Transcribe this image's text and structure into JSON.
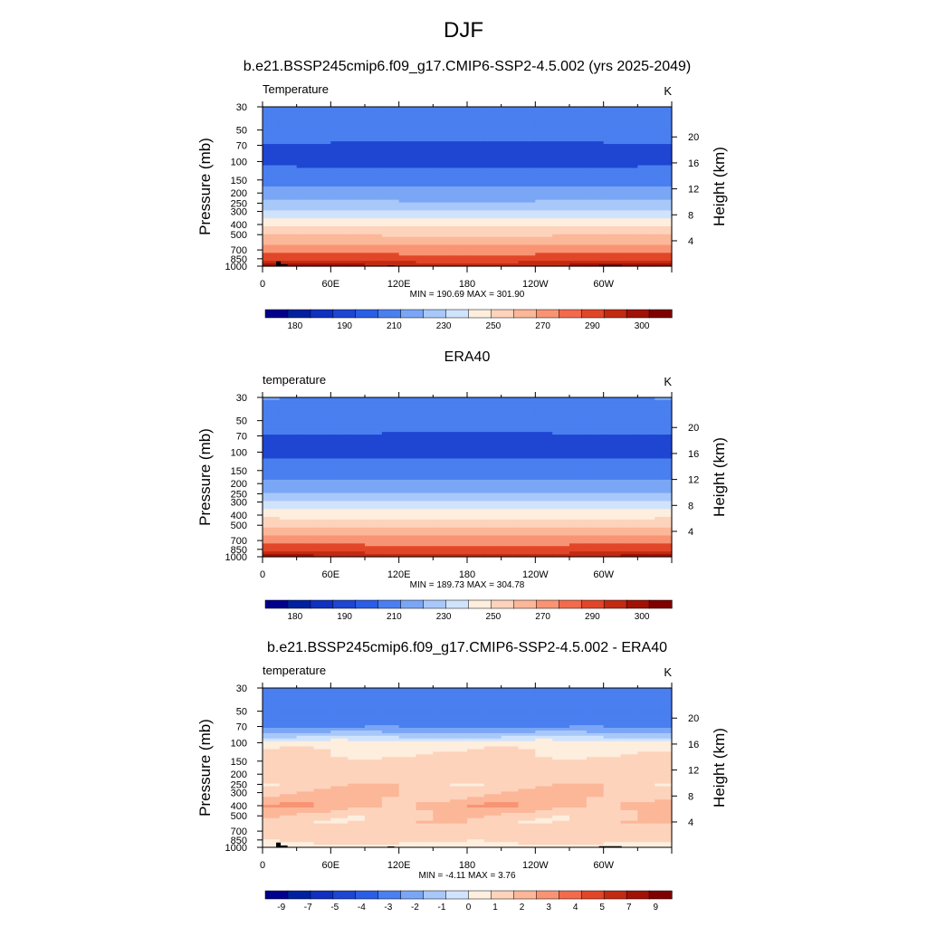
{
  "figure_title": "DJF",
  "colors": {
    "palette": [
      "#00008c",
      "#0020a0",
      "#1030c0",
      "#1e46d2",
      "#2b5ee6",
      "#4a7ff0",
      "#7ba6f6",
      "#a8c8fa",
      "#d0e3fc",
      "#fdeede",
      "#fdd3bc",
      "#fcb698",
      "#f89473",
      "#f26b4d",
      "#e24628",
      "#c22a12",
      "#a11106",
      "#800000"
    ]
  },
  "chart_data": [
    {
      "type": "heatmap",
      "title": "b.e21.BSSP245cmip6.f09_g17.CMIP6-SSP2-4.5.002 (yrs 2025-2049)",
      "left_label": "Temperature",
      "units": "K",
      "ylabel": "Pressure (mb)",
      "ylabel_right": "Height (km)",
      "pressure_ticks": [
        30,
        50,
        70,
        100,
        150,
        200,
        250,
        300,
        400,
        500,
        700,
        850,
        1000
      ],
      "height_ticks": [
        20,
        16,
        12,
        8,
        4
      ],
      "x_ticks": [
        "0",
        "60E",
        "120E",
        "180",
        "120W",
        "60W"
      ],
      "xlim": [
        0,
        360
      ],
      "ylim_pressure": [
        1000,
        30
      ],
      "stats": "MIN = 190.69  MAX = 301.90",
      "levels": [
        175,
        180,
        185,
        190,
        200,
        210,
        220,
        230,
        240,
        250,
        260,
        270,
        280,
        290,
        295,
        300,
        305
      ],
      "colorbar_labels": [
        "180",
        "190",
        "210",
        "230",
        "250",
        "270",
        "290",
        "300"
      ],
      "profile": [
        [
          30,
          209
        ],
        [
          50,
          204
        ],
        [
          70,
          199
        ],
        [
          100,
          197
        ],
        [
          150,
          207
        ],
        [
          200,
          213
        ],
        [
          250,
          222
        ],
        [
          300,
          232
        ],
        [
          400,
          247
        ],
        [
          500,
          259
        ],
        [
          700,
          276
        ],
        [
          850,
          286
        ],
        [
          1000,
          297
        ]
      ],
      "topography": true
    },
    {
      "type": "heatmap",
      "title": "ERA40",
      "left_label": "temperature",
      "units": "K",
      "ylabel": "Pressure (mb)",
      "ylabel_right": "Height (km)",
      "pressure_ticks": [
        30,
        50,
        70,
        100,
        150,
        200,
        250,
        300,
        400,
        500,
        700,
        850,
        1000
      ],
      "height_ticks": [
        20,
        16,
        12,
        8,
        4
      ],
      "x_ticks": [
        "0",
        "60E",
        "120E",
        "180",
        "120W",
        "60W"
      ],
      "xlim": [
        0,
        360
      ],
      "ylim_pressure": [
        1000,
        30
      ],
      "stats": "MIN = 189.73  MAX = 304.78",
      "levels": [
        175,
        180,
        185,
        190,
        200,
        210,
        220,
        230,
        240,
        250,
        260,
        270,
        280,
        290,
        295,
        300,
        305
      ],
      "colorbar_labels": [
        "180",
        "190",
        "210",
        "230",
        "250",
        "270",
        "290",
        "300"
      ],
      "profile": [
        [
          30,
          210
        ],
        [
          50,
          205
        ],
        [
          70,
          199
        ],
        [
          100,
          197
        ],
        [
          150,
          206
        ],
        [
          200,
          212
        ],
        [
          250,
          221
        ],
        [
          300,
          231
        ],
        [
          400,
          246
        ],
        [
          500,
          258
        ],
        [
          700,
          275
        ],
        [
          850,
          285
        ],
        [
          1000,
          296
        ]
      ],
      "topography": false
    },
    {
      "type": "heatmap",
      "title": "b.e21.BSSP245cmip6.f09_g17.CMIP6-SSP2-4.5.002 - ERA40",
      "left_label": "temperature",
      "units": "K",
      "ylabel": "Pressure (mb)",
      "ylabel_right": "Height (km)",
      "pressure_ticks": [
        30,
        50,
        70,
        100,
        150,
        200,
        250,
        300,
        400,
        500,
        700,
        850,
        1000
      ],
      "height_ticks": [
        20,
        16,
        12,
        8,
        4
      ],
      "x_ticks": [
        "0",
        "60E",
        "120E",
        "180",
        "120W",
        "60W"
      ],
      "xlim": [
        0,
        360
      ],
      "ylim_pressure": [
        1000,
        30
      ],
      "stats": "MIN = -4.11  MAX =  3.76",
      "levels": [
        -11,
        -9,
        -7,
        -5,
        -4,
        -3,
        -2,
        -1,
        0,
        1,
        2,
        3,
        4,
        5,
        7,
        9,
        11
      ],
      "colorbar_labels": [
        "-9",
        "-7",
        "-5",
        "-4",
        "-3",
        "-2",
        "-1",
        "0",
        "1",
        "2",
        "3",
        "4",
        "5",
        "7",
        "9"
      ],
      "profile": [
        [
          30,
          -3.6
        ],
        [
          50,
          -3.5
        ],
        [
          70,
          -3.2
        ],
        [
          85,
          -1.5
        ],
        [
          100,
          0.6
        ],
        [
          150,
          1.3
        ],
        [
          200,
          1.3
        ],
        [
          250,
          1.5
        ],
        [
          300,
          2.0
        ],
        [
          400,
          2.6
        ],
        [
          500,
          1.6
        ],
        [
          700,
          1.4
        ],
        [
          850,
          1.3
        ],
        [
          1000,
          0.5
        ]
      ],
      "topography": true
    }
  ]
}
